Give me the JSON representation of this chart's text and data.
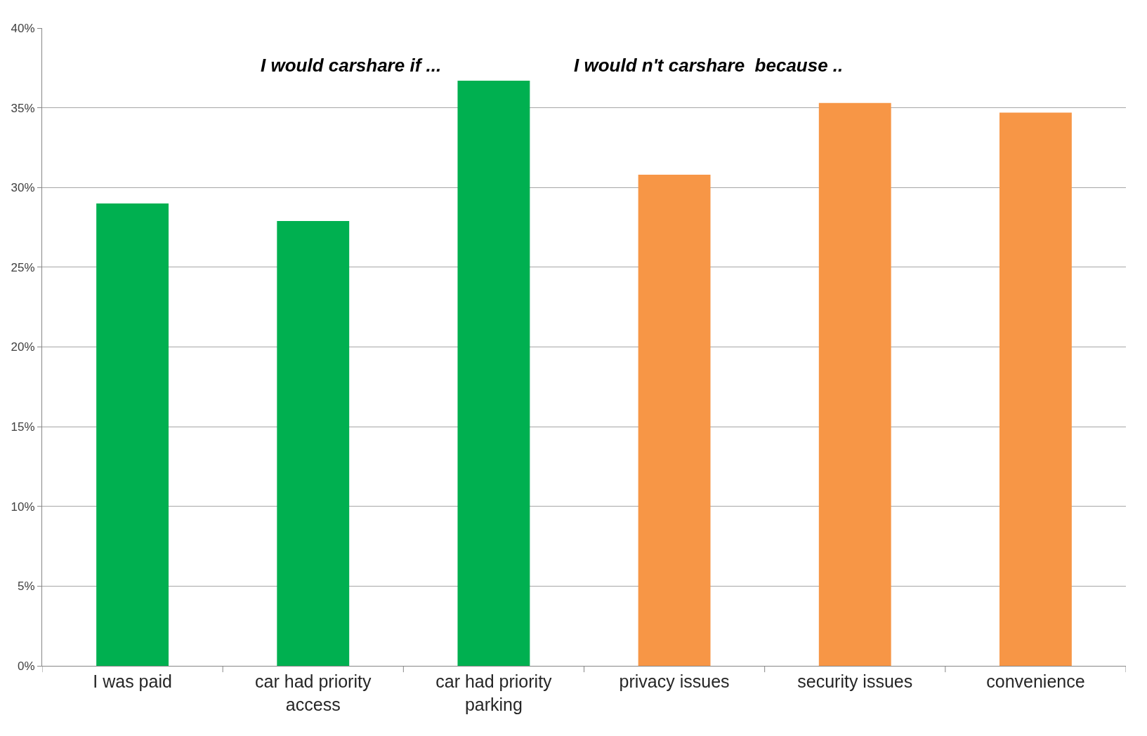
{
  "chart_data": {
    "type": "bar",
    "categories": [
      "I was paid",
      "car had priority access",
      "car had priority parking",
      "privacy issues",
      "security issues",
      "convenience"
    ],
    "values": [
      29.0,
      27.9,
      36.7,
      30.8,
      35.3,
      34.7
    ],
    "colors": [
      "#00b050",
      "#00b050",
      "#00b050",
      "#f79646",
      "#f79646",
      "#f79646"
    ],
    "annotations": [
      "I would carshare if ...",
      "I would n't carshare  because .."
    ],
    "ylim": [
      0,
      40
    ],
    "yticks": [
      {
        "value": 0,
        "label": "0%"
      },
      {
        "value": 5,
        "label": "5%"
      },
      {
        "value": 10,
        "label": "10%"
      },
      {
        "value": 15,
        "label": "15%"
      },
      {
        "value": 20,
        "label": "20%"
      },
      {
        "value": 25,
        "label": "25%"
      },
      {
        "value": 30,
        "label": "30%"
      },
      {
        "value": 35,
        "label": "35%"
      },
      {
        "value": 40,
        "label": "40%"
      }
    ],
    "grid": "y",
    "legend": false
  }
}
